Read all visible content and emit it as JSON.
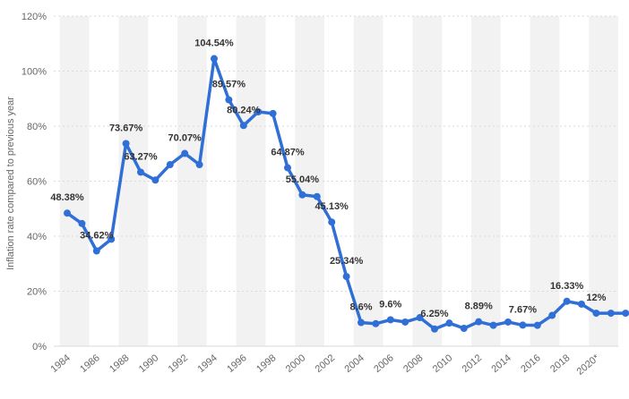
{
  "chart_data": {
    "type": "line",
    "ylabel": "Inflation rate compared to previous year",
    "xlabel": "",
    "ylim": [
      0,
      120
    ],
    "yticks": [
      "0%",
      "20%",
      "40%",
      "60%",
      "80%",
      "100%",
      "120%"
    ],
    "x": [
      "1984",
      "1985",
      "1986",
      "1987",
      "1988",
      "1989",
      "1990",
      "1991",
      "1992",
      "1993",
      "1994",
      "1995",
      "1996",
      "1997",
      "1998",
      "1999",
      "2000",
      "2001",
      "2002",
      "2003",
      "2004",
      "2005",
      "2006",
      "2007",
      "2008",
      "2009",
      "2010",
      "2011",
      "2012",
      "2013",
      "2014",
      "2015",
      "2016",
      "2017",
      "2018",
      "2019",
      "2020*",
      "2021*",
      "2022*"
    ],
    "xtick_labels": [
      "1984",
      "1986",
      "1988",
      "1990",
      "1992",
      "1994",
      "1996",
      "1998",
      "2000",
      "2002",
      "2004",
      "2006",
      "2008",
      "2010",
      "2012",
      "2014",
      "2016",
      "2018",
      "2020*"
    ],
    "series": [
      {
        "values": [
          48.38,
          44.6,
          34.62,
          38.9,
          73.67,
          63.27,
          60.4,
          66.0,
          70.07,
          66.0,
          104.54,
          89.57,
          80.24,
          85.2,
          84.6,
          64.87,
          55.04,
          54.4,
          45.13,
          25.34,
          8.6,
          8.2,
          9.6,
          8.8,
          10.4,
          6.25,
          8.4,
          6.5,
          8.89,
          7.6,
          8.8,
          7.67,
          7.6,
          11.2,
          16.33,
          15.3,
          12.0,
          12.0,
          12.0
        ],
        "labels": [
          "48.38%",
          "",
          "34.62%",
          "",
          "73.67%",
          "63.27%",
          "",
          "",
          "70.07%",
          "",
          "104.54%",
          "89.57%",
          "80.24%",
          "",
          "",
          "64.87%",
          "55.04%",
          "",
          "45.13%",
          "25.34%",
          "8.6%",
          "",
          "9.6%",
          "",
          "",
          "6.25%",
          "",
          "",
          "8.89%",
          "",
          "",
          "7.67%",
          "",
          "",
          "16.33%",
          "",
          "12%",
          "",
          ""
        ]
      }
    ],
    "grid": true,
    "colors": {
      "line": "#2f6fd6",
      "band": "#f2f2f2",
      "grid": "#d9d9d9"
    }
  }
}
